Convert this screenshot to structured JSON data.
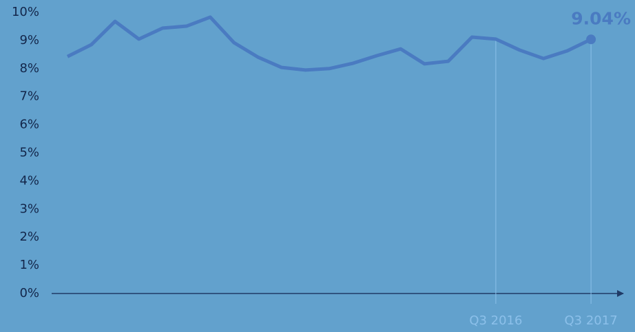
{
  "chart_data": {
    "type": "line",
    "categories": [
      null,
      null,
      null,
      null,
      null,
      null,
      null,
      null,
      null,
      null,
      null,
      null,
      null,
      null,
      null,
      null,
      null,
      null,
      "Q3 2016",
      null,
      null,
      null,
      "Q3 2017"
    ],
    "values": [
      8.43,
      8.85,
      9.68,
      9.05,
      9.44,
      9.51,
      9.83,
      8.92,
      8.41,
      8.04,
      7.95,
      8.0,
      8.19,
      8.46,
      8.7,
      8.17,
      8.26,
      9.12,
      9.05,
      8.66,
      8.36,
      8.63,
      9.04
    ],
    "value_labels": [
      null,
      null,
      null,
      null,
      null,
      null,
      null,
      null,
      null,
      null,
      null,
      null,
      null,
      null,
      null,
      null,
      null,
      null,
      null,
      null,
      null,
      null,
      "9.04%"
    ],
    "color": "#4a7bc1",
    "ylim": [
      0,
      10
    ],
    "yticks": [
      {
        "value": 0,
        "label": "0%"
      },
      {
        "value": 1,
        "label": "1%"
      },
      {
        "value": 2,
        "label": "2%"
      },
      {
        "value": 3,
        "label": "3%"
      },
      {
        "value": 4,
        "label": "4%"
      },
      {
        "value": 5,
        "label": "5%"
      },
      {
        "value": 6,
        "label": "6%"
      },
      {
        "value": 7,
        "label": "7%"
      },
      {
        "value": 8,
        "label": "8%"
      },
      {
        "value": 9,
        "label": "9%"
      },
      {
        "value": 10,
        "label": "10%"
      }
    ],
    "grid": false
  }
}
